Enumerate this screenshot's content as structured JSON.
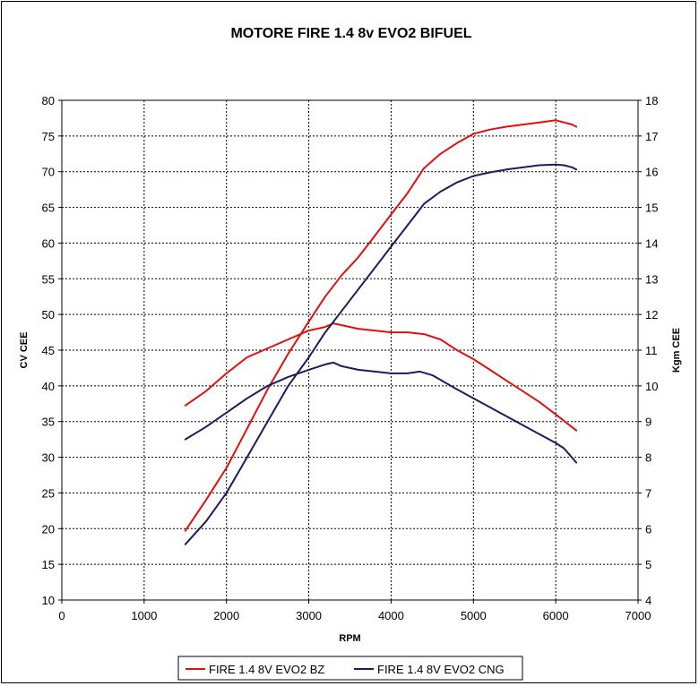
{
  "chart_data": {
    "type": "line",
    "title": "MOTORE FIRE 1.4 8v EVO2 BIFUEL",
    "xlabel": "RPM",
    "ylabel_left": "CV CEE",
    "ylabel_right": "Kgm CEE",
    "xlim": [
      0,
      7000
    ],
    "ylim_left": [
      10,
      80
    ],
    "ylim_right": [
      4,
      18
    ],
    "x_ticks": [
      "0",
      "1000",
      "2000",
      "3000",
      "4000",
      "5000",
      "6000",
      "7000"
    ],
    "y_left_ticks": [
      "10",
      "15",
      "20",
      "25",
      "30",
      "35",
      "40",
      "45",
      "50",
      "55",
      "60",
      "65",
      "70",
      "75",
      "80"
    ],
    "y_right_ticks": [
      "4",
      "5",
      "6",
      "7",
      "8",
      "9",
      "10",
      "11",
      "12",
      "13",
      "14",
      "15",
      "16",
      "17",
      "18"
    ],
    "grid": true,
    "legend_position": "bottom",
    "series": [
      {
        "name": "FIRE 1.4 8V EVO2 BZ",
        "color": "#dd1111",
        "axis": "left",
        "curve": "power",
        "points": [
          [
            1500,
            19.7
          ],
          [
            1750,
            24
          ],
          [
            2000,
            28.5
          ],
          [
            2250,
            34
          ],
          [
            2500,
            39.5
          ],
          [
            2750,
            44.5
          ],
          [
            3000,
            49
          ],
          [
            3200,
            52.5
          ],
          [
            3400,
            55.5
          ],
          [
            3600,
            58
          ],
          [
            3800,
            61
          ],
          [
            4000,
            64
          ],
          [
            4200,
            67
          ],
          [
            4400,
            70.5
          ],
          [
            4600,
            72.5
          ],
          [
            4800,
            74
          ],
          [
            5000,
            75.3
          ],
          [
            5200,
            75.9
          ],
          [
            5400,
            76.3
          ],
          [
            5600,
            76.6
          ],
          [
            5800,
            76.9
          ],
          [
            6000,
            77.2
          ],
          [
            6200,
            76.6
          ],
          [
            6250,
            76.3
          ]
        ]
      },
      {
        "name": "FIRE 1.4 8V EVO2 BZ",
        "color": "#dd1111",
        "axis": "right",
        "curve": "torque",
        "points": [
          [
            1500,
            9.45
          ],
          [
            1750,
            9.85
          ],
          [
            2000,
            10.35
          ],
          [
            2250,
            10.8
          ],
          [
            2500,
            11.05
          ],
          [
            2750,
            11.3
          ],
          [
            3000,
            11.55
          ],
          [
            3200,
            11.65
          ],
          [
            3300,
            11.75
          ],
          [
            3400,
            11.7
          ],
          [
            3600,
            11.6
          ],
          [
            3800,
            11.55
          ],
          [
            4000,
            11.5
          ],
          [
            4200,
            11.5
          ],
          [
            4400,
            11.45
          ],
          [
            4600,
            11.3
          ],
          [
            4800,
            11
          ],
          [
            5000,
            10.75
          ],
          [
            5200,
            10.45
          ],
          [
            5400,
            10.15
          ],
          [
            5600,
            9.85
          ],
          [
            5800,
            9.55
          ],
          [
            6000,
            9.2
          ],
          [
            6250,
            8.75
          ]
        ]
      },
      {
        "name": "FIRE 1.4 8V EVO2 CNG",
        "color": "#1c1c5e",
        "axis": "left",
        "curve": "power",
        "points": [
          [
            1500,
            17.8
          ],
          [
            1750,
            21
          ],
          [
            2000,
            25
          ],
          [
            2250,
            30
          ],
          [
            2500,
            35
          ],
          [
            2750,
            40
          ],
          [
            3000,
            44
          ],
          [
            3200,
            47.5
          ],
          [
            3400,
            50.5
          ],
          [
            3600,
            53.5
          ],
          [
            3800,
            56.5
          ],
          [
            4000,
            59.5
          ],
          [
            4200,
            62.5
          ],
          [
            4400,
            65.5
          ],
          [
            4600,
            67.2
          ],
          [
            4800,
            68.5
          ],
          [
            5000,
            69.4
          ],
          [
            5200,
            69.9
          ],
          [
            5400,
            70.3
          ],
          [
            5600,
            70.6
          ],
          [
            5800,
            70.9
          ],
          [
            6000,
            71
          ],
          [
            6100,
            70.9
          ],
          [
            6200,
            70.6
          ],
          [
            6250,
            70.3
          ]
        ]
      },
      {
        "name": "FIRE 1.4 8V EVO2 CNG",
        "color": "#1c1c5e",
        "axis": "right",
        "curve": "torque",
        "points": [
          [
            1500,
            8.5
          ],
          [
            1750,
            8.85
          ],
          [
            2000,
            9.25
          ],
          [
            2250,
            9.65
          ],
          [
            2500,
            10
          ],
          [
            2750,
            10.25
          ],
          [
            3000,
            10.45
          ],
          [
            3200,
            10.6
          ],
          [
            3300,
            10.65
          ],
          [
            3400,
            10.55
          ],
          [
            3600,
            10.45
          ],
          [
            3800,
            10.4
          ],
          [
            4000,
            10.35
          ],
          [
            4200,
            10.35
          ],
          [
            4350,
            10.4
          ],
          [
            4500,
            10.3
          ],
          [
            4800,
            9.9
          ],
          [
            5000,
            9.65
          ],
          [
            5200,
            9.4
          ],
          [
            5400,
            9.15
          ],
          [
            5600,
            8.9
          ],
          [
            5800,
            8.65
          ],
          [
            6000,
            8.4
          ],
          [
            6100,
            8.25
          ],
          [
            6250,
            7.85
          ]
        ]
      }
    ],
    "legend": [
      {
        "label": "FIRE 1.4 8V EVO2 BZ",
        "color": "#dd1111"
      },
      {
        "label": "FIRE 1.4 8V EVO2 CNG",
        "color": "#1c1c5e"
      }
    ]
  }
}
